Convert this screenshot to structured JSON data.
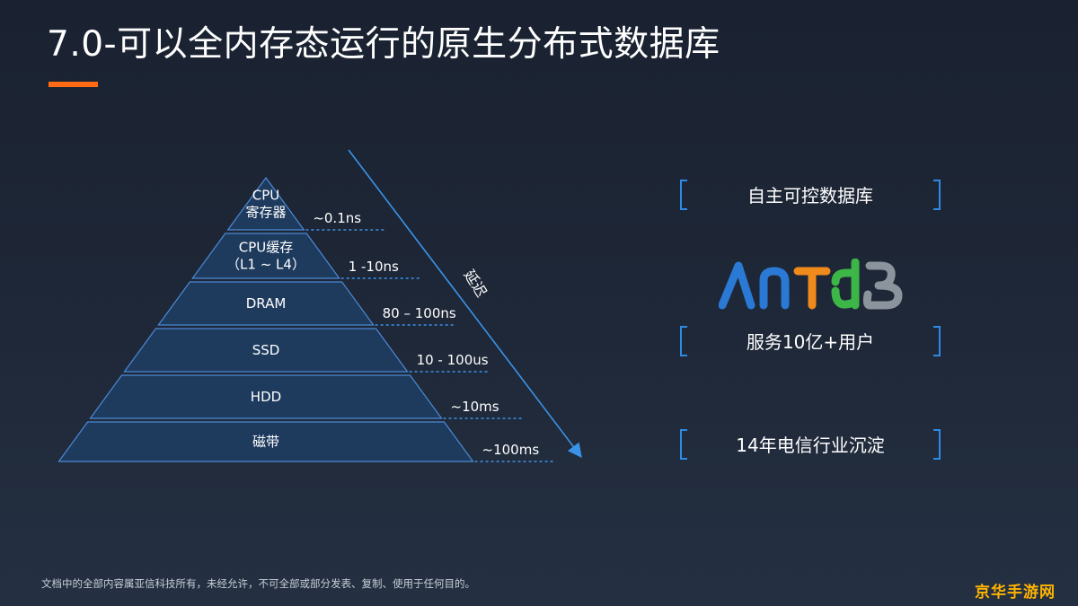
{
  "slide": {
    "title": "7.0-可以全内存态运行的原生分布式数据库"
  },
  "pyramid": {
    "tiers": [
      {
        "lines": [
          "CPU",
          "寄存器"
        ],
        "latency": "~0.1ns"
      },
      {
        "lines": [
          "CPU缓存",
          "（L1 ~ L4）"
        ],
        "latency": "1 -10ns"
      },
      {
        "lines": [
          "DRAM"
        ],
        "latency": "80 – 100ns"
      },
      {
        "lines": [
          "SSD"
        ],
        "latency": "10 - 100us"
      },
      {
        "lines": [
          "HDD"
        ],
        "latency": "~10ms"
      },
      {
        "lines": [
          "磁带"
        ],
        "latency": "~100ms"
      }
    ],
    "axis_label": "延迟"
  },
  "features": [
    {
      "label": "自主可控数据库"
    },
    {
      "label": "服务10亿+用户"
    },
    {
      "label": "14年电信行业沉淀"
    }
  ],
  "logo": {
    "text": "AntDB"
  },
  "footer": {
    "text": "文档中的全部内容属亚信科技所有，未经允许，不可全部或部分发表、复制、使用于任何目的。"
  },
  "watermark": {
    "text": "京华手游网"
  },
  "colors": {
    "accent": "#ff6a14",
    "pyramid_fill": "#1e3b5e",
    "pyramid_stroke": "#4b8ad6",
    "bracket": "#2e8ae6",
    "logo_blue": "#2a79d4",
    "logo_orange": "#f08a1c",
    "logo_green": "#3db648",
    "logo_gray": "#8b939c"
  }
}
